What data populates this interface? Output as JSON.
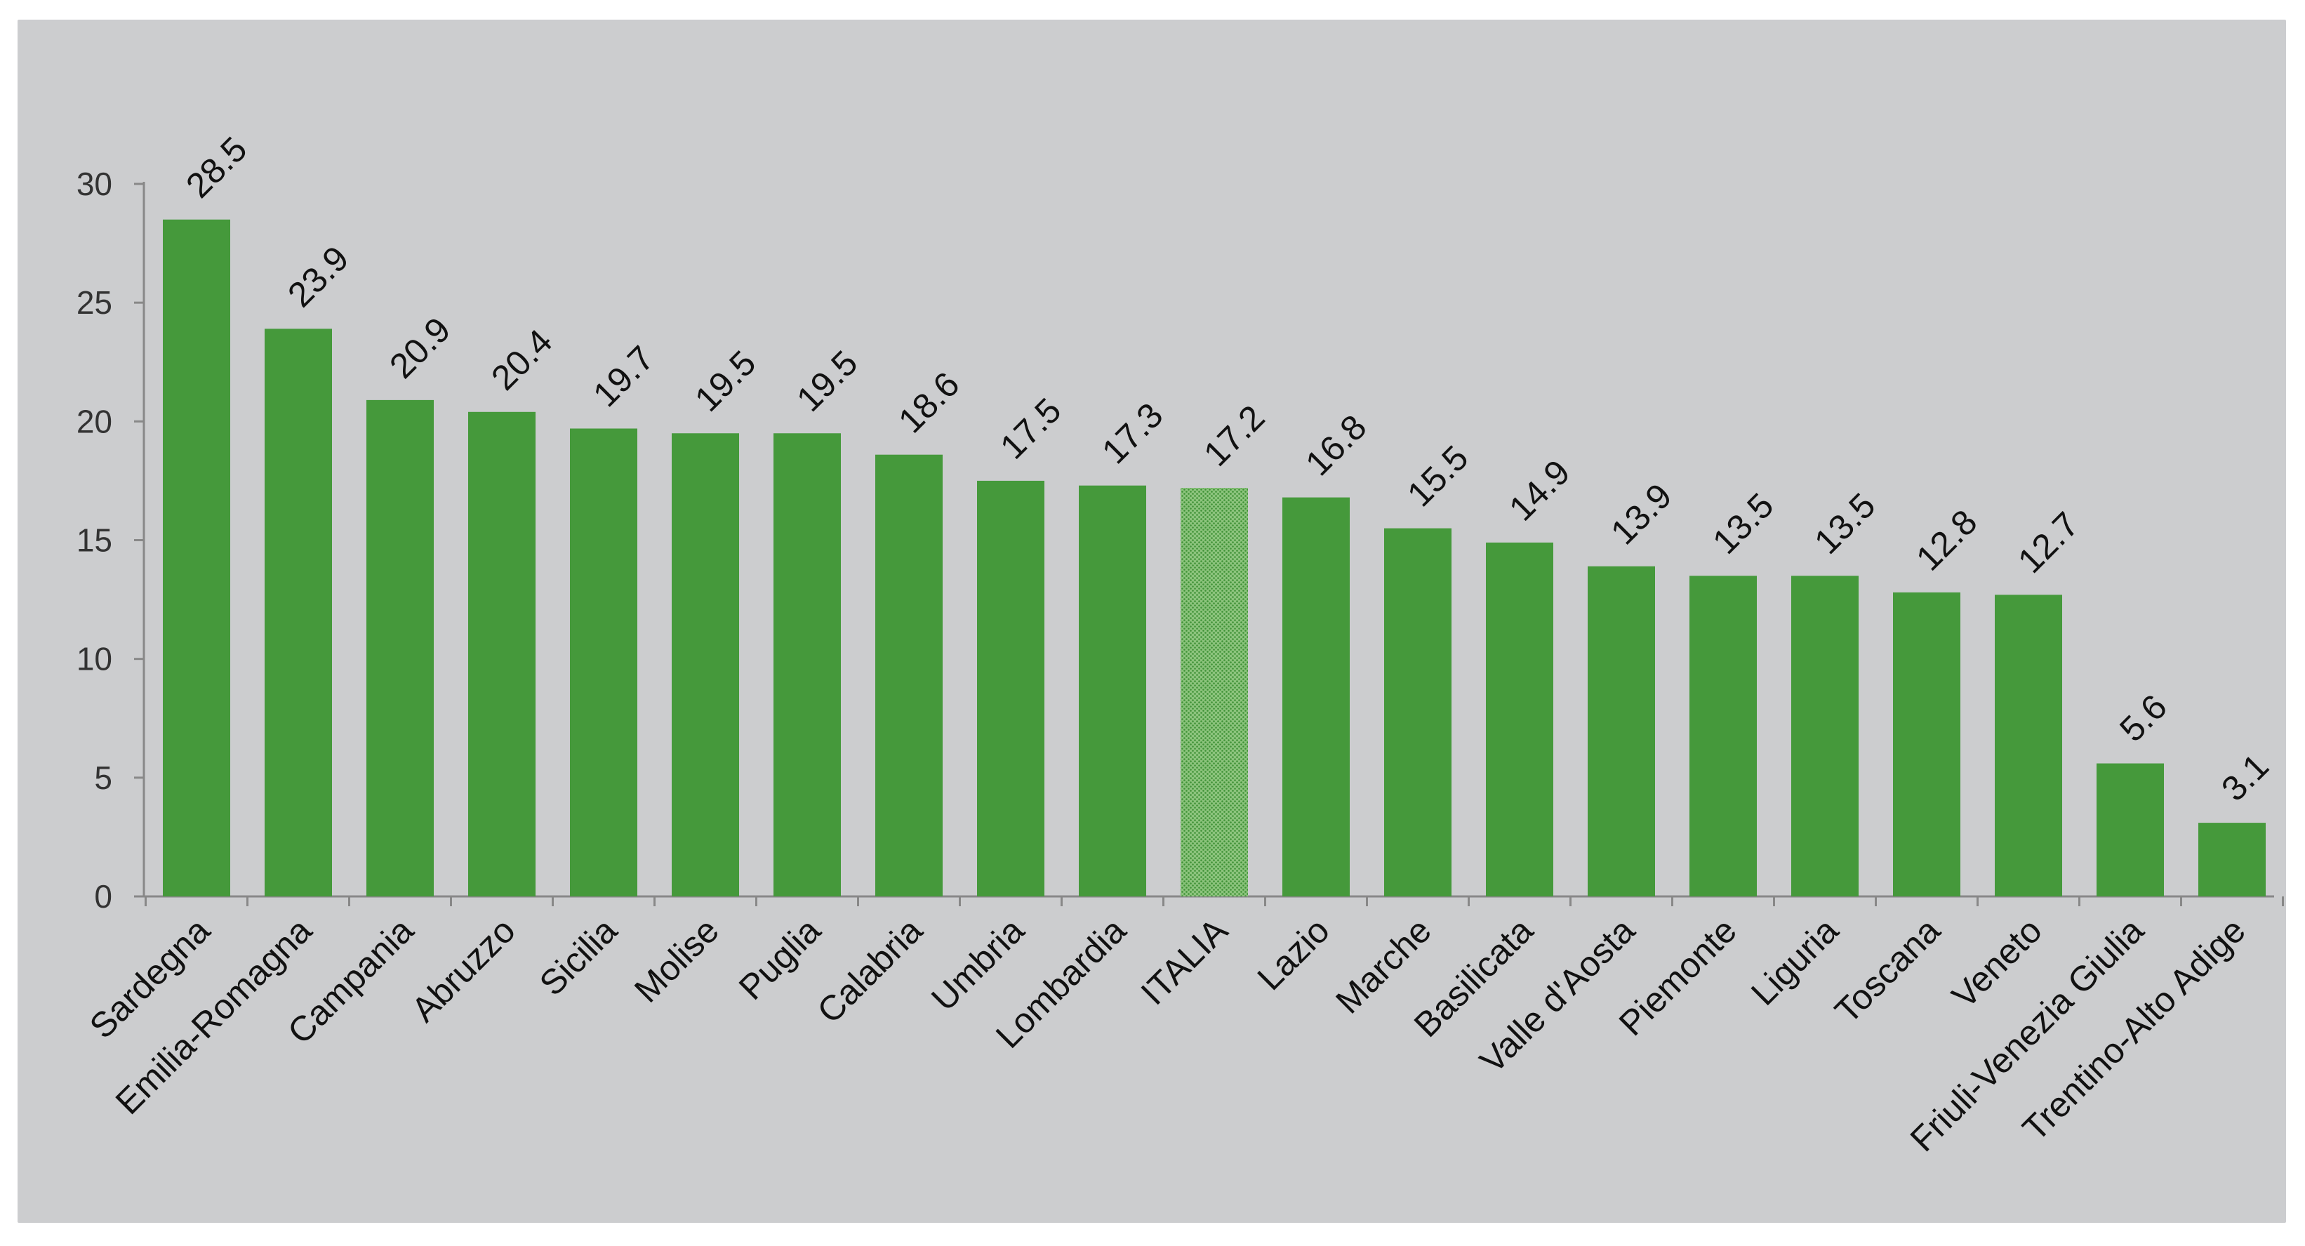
{
  "chart_data": {
    "type": "bar",
    "categories": [
      "Sardegna",
      "Emilia-Romagna",
      "Campania",
      "Abruzzo",
      "Sicilia",
      "Molise",
      "Puglia",
      "Calabria",
      "Umbria",
      "Lombardia",
      "ITALIA",
      "Lazio",
      "Marche",
      "Basilicata",
      "Valle d'Aosta",
      "Piemonte",
      "Liguria",
      "Toscana",
      "Veneto",
      "Friuli-Venezia Giulia",
      "Trentino-Alto Adige"
    ],
    "values": [
      28.5,
      23.9,
      20.9,
      20.4,
      19.7,
      19.5,
      19.5,
      18.6,
      17.5,
      17.3,
      17.2,
      16.8,
      15.5,
      14.9,
      13.9,
      13.5,
      13.5,
      12.8,
      12.7,
      5.6,
      3.1
    ],
    "value_labels": [
      "28.5",
      "23.9",
      "20.9",
      "20.4",
      "19.7",
      "19.5",
      "19.5",
      "18.6",
      "17.5",
      "17.3",
      "17.2",
      "16.8",
      "15.5",
      "14.9",
      "13.9",
      "13.5",
      "13.5",
      "12.8",
      "12.7",
      "5.6",
      "3.1"
    ],
    "highlight_category": "ITALIA",
    "yticks": [
      "0",
      "5",
      "10",
      "15",
      "20",
      "25",
      "30"
    ],
    "ylim": [
      0,
      30
    ],
    "title": "",
    "xlabel": "",
    "ylabel": "",
    "grid": false,
    "legend": "none",
    "colors": {
      "bar": "#45993b",
      "highlight": "#8cc47d",
      "highlight_dots": "#3f9136",
      "background": "#cccdcf",
      "axis": "#888888"
    }
  }
}
